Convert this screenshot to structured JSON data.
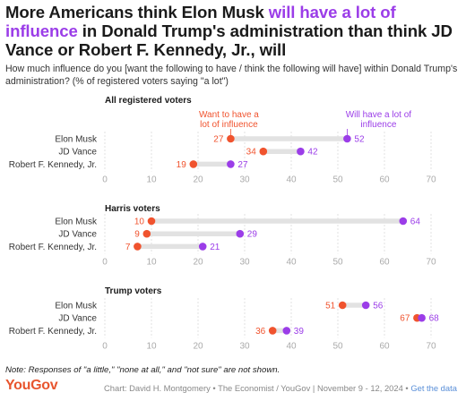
{
  "title": {
    "part1": "More Americans think Elon Musk ",
    "highlight": "will have a lot of influence",
    "part2": " in Donald Trump's administration than think JD Vance or Robert F. Kennedy, Jr., will"
  },
  "subtitle": "How much influence do you [want the following to have / think the following will have] within Donald Trump's administration? (% of registered voters saying \"a lot\")",
  "colors": {
    "want": "#f0532e",
    "will": "#9b3de8",
    "bar": "#e2e2e2",
    "grid": "#d9d9d9"
  },
  "chart_data": {
    "type": "dot-range",
    "xlim": [
      0,
      70
    ],
    "ticks": [
      0,
      10,
      20,
      30,
      40,
      50,
      60,
      70
    ],
    "series_labels": {
      "want": "Want to have a lot of influence",
      "will": "Will have a lot of influence"
    },
    "panels": [
      {
        "title": "All registered voters",
        "rows": [
          {
            "label": "Elon Musk",
            "want": 27,
            "will": 52
          },
          {
            "label": "JD Vance",
            "want": 34,
            "will": 42
          },
          {
            "label": "Robert F. Kennedy, Jr.",
            "want": 19,
            "will": 27
          }
        ]
      },
      {
        "title": "Harris voters",
        "rows": [
          {
            "label": "Elon Musk",
            "want": 10,
            "will": 64
          },
          {
            "label": "JD Vance",
            "want": 9,
            "will": 29
          },
          {
            "label": "Robert F. Kennedy, Jr.",
            "want": 7,
            "will": 21
          }
        ]
      },
      {
        "title": "Trump voters",
        "rows": [
          {
            "label": "Elon Musk",
            "want": 51,
            "will": 56
          },
          {
            "label": "JD Vance",
            "want": 67,
            "will": 68
          },
          {
            "label": "Robert F. Kennedy, Jr.",
            "want": 36,
            "will": 39
          }
        ]
      }
    ]
  },
  "footer": {
    "note": "Note: Responses of \"a little,\" \"none at all,\" and \"not sure\" are not shown.",
    "logo": "YouGov",
    "credit": "Chart: David H. Montgomery • The Economist / YouGov | November 9 - 12, 2024 • ",
    "link": "Get the data"
  }
}
